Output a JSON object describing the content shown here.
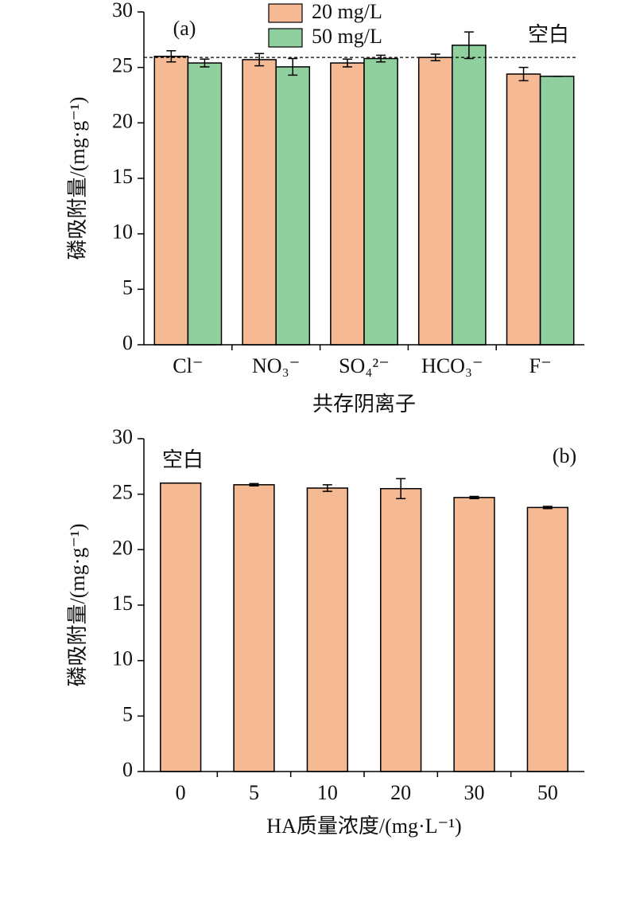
{
  "chart_data": [
    {
      "type": "bar",
      "categories": [
        "Cl⁻",
        "NO₃⁻",
        "SO₄²⁻",
        "HCO₃⁻",
        "F⁻"
      ],
      "series": [
        {
          "name": "20 mg/L",
          "color": "#f5b993",
          "values": [
            26.0,
            25.7,
            25.4,
            25.9,
            24.4
          ],
          "errors": [
            0.5,
            0.55,
            0.35,
            0.3,
            0.6
          ]
        },
        {
          "name": "50 mg/L",
          "color": "#90cf9e",
          "values": [
            25.4,
            25.05,
            25.8,
            27.0,
            24.2
          ],
          "errors": [
            0.35,
            0.75,
            0.3,
            1.2,
            0
          ]
        }
      ],
      "ylim": [
        0,
        30
      ],
      "yticks": [
        0,
        5,
        10,
        15,
        20,
        25,
        30
      ],
      "y_label": "磷吸附量/(mg·g⁻¹)",
      "x_label": "共存阴离子",
      "reference_line": {
        "value": 25.9,
        "label": "空白"
      },
      "annotations": [
        "(a)"
      ],
      "legend": "top"
    },
    {
      "type": "bar",
      "categories": [
        "0",
        "5",
        "10",
        "20",
        "30",
        "50"
      ],
      "values": [
        26.0,
        25.85,
        25.55,
        25.5,
        24.7,
        23.8
      ],
      "errors": [
        0,
        0.1,
        0.3,
        0.9,
        0.1,
        0.1
      ],
      "color": "#f5b993",
      "ylim": [
        0,
        30
      ],
      "yticks": [
        0,
        5,
        10,
        15,
        20,
        25,
        30
      ],
      "y_label": "磷吸附量/(mg·g⁻¹)",
      "x_label": "HA质量浓度/(mg·L⁻¹)",
      "annotations": [
        "空白",
        "(b)"
      ]
    }
  ]
}
